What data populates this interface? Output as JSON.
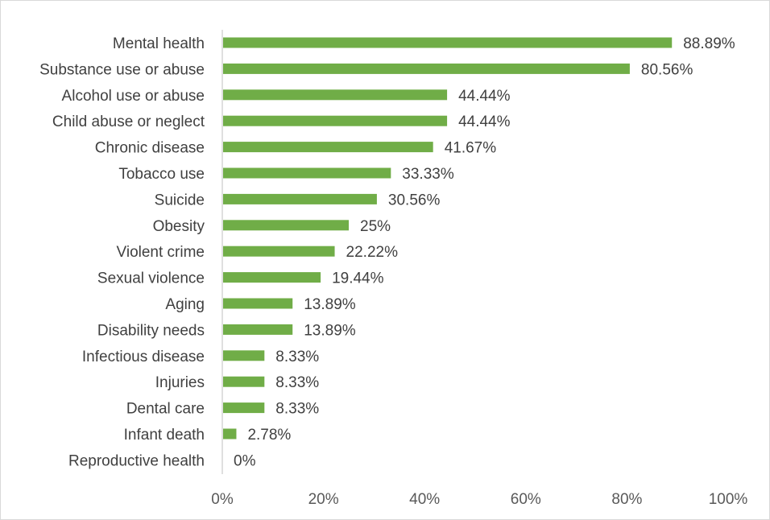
{
  "chart_data": {
    "type": "bar",
    "orientation": "horizontal",
    "title": "",
    "xlabel": "",
    "ylabel": "",
    "categories": [
      "Mental health",
      "Substance use or abuse",
      "Alcohol use or abuse",
      "Child abuse or neglect",
      "Chronic disease",
      "Tobacco use",
      "Suicide",
      "Obesity",
      "Violent crime",
      "Sexual violence",
      "Aging",
      "Disability needs",
      "Infectious disease",
      "Injuries",
      "Dental care",
      "Infant death",
      "Reproductive health"
    ],
    "values": [
      88.89,
      80.56,
      44.44,
      44.44,
      41.67,
      33.33,
      30.56,
      25,
      22.22,
      19.44,
      13.89,
      13.89,
      8.33,
      8.33,
      8.33,
      2.78,
      0
    ],
    "value_labels": [
      "88.89%",
      "80.56%",
      "44.44%",
      "44.44%",
      "41.67%",
      "33.33%",
      "30.56%",
      "25%",
      "22.22%",
      "19.44%",
      "13.89%",
      "13.89%",
      "8.33%",
      "8.33%",
      "8.33%",
      "2.78%",
      "0%"
    ],
    "xlim": [
      0,
      100
    ],
    "x_ticks": [
      0,
      20,
      40,
      60,
      80,
      100
    ],
    "x_tick_labels": [
      "0%",
      "20%",
      "40%",
      "60%",
      "80%",
      "100%"
    ],
    "grid": false,
    "legend": "none",
    "bar_color": "#70ad47"
  }
}
